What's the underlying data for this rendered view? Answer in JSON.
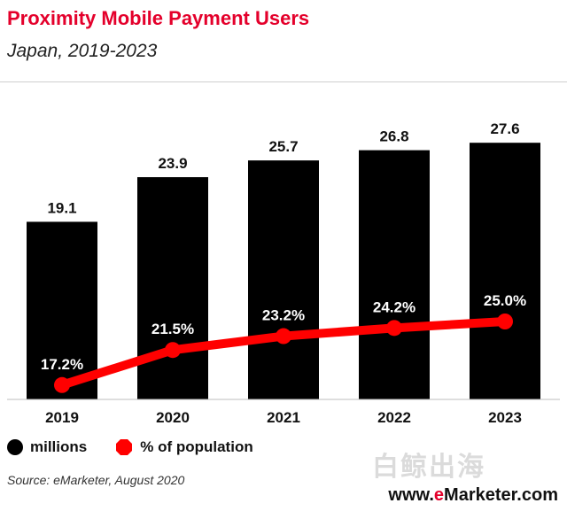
{
  "header": {
    "title": "Proximity Mobile Payment Users",
    "subtitle": "Japan, 2019-2023"
  },
  "legend": {
    "bars_label": "millions",
    "line_label": "% of population"
  },
  "footer": {
    "source": "Source: eMarketer, August 2020",
    "brand_prefix": "www.",
    "brand_accent": "e",
    "brand_suffix": "Marketer.com",
    "watermark_text": "白鲸出海"
  },
  "colors": {
    "bar": "#000000",
    "line": "#ff0000",
    "title": "#e4002b"
  },
  "chart_data": {
    "type": "bar",
    "categories": [
      "2019",
      "2020",
      "2021",
      "2022",
      "2023"
    ],
    "series": [
      {
        "name": "millions",
        "type": "bar",
        "values": [
          19.1,
          23.9,
          25.7,
          26.8,
          27.6
        ],
        "labels": [
          "19.1",
          "23.9",
          "25.7",
          "26.8",
          "27.6"
        ]
      },
      {
        "name": "% of population",
        "type": "line",
        "values": [
          17.2,
          21.5,
          23.2,
          24.2,
          25.0
        ],
        "labels": [
          "17.2%",
          "21.5%",
          "23.2%",
          "24.2%",
          "25.0%"
        ]
      }
    ],
    "title": "Proximity Mobile Payment Users",
    "subtitle": "Japan, 2019-2023",
    "xlabel": "",
    "ylabel": "",
    "grid": false,
    "legend_position": "bottom-left"
  }
}
